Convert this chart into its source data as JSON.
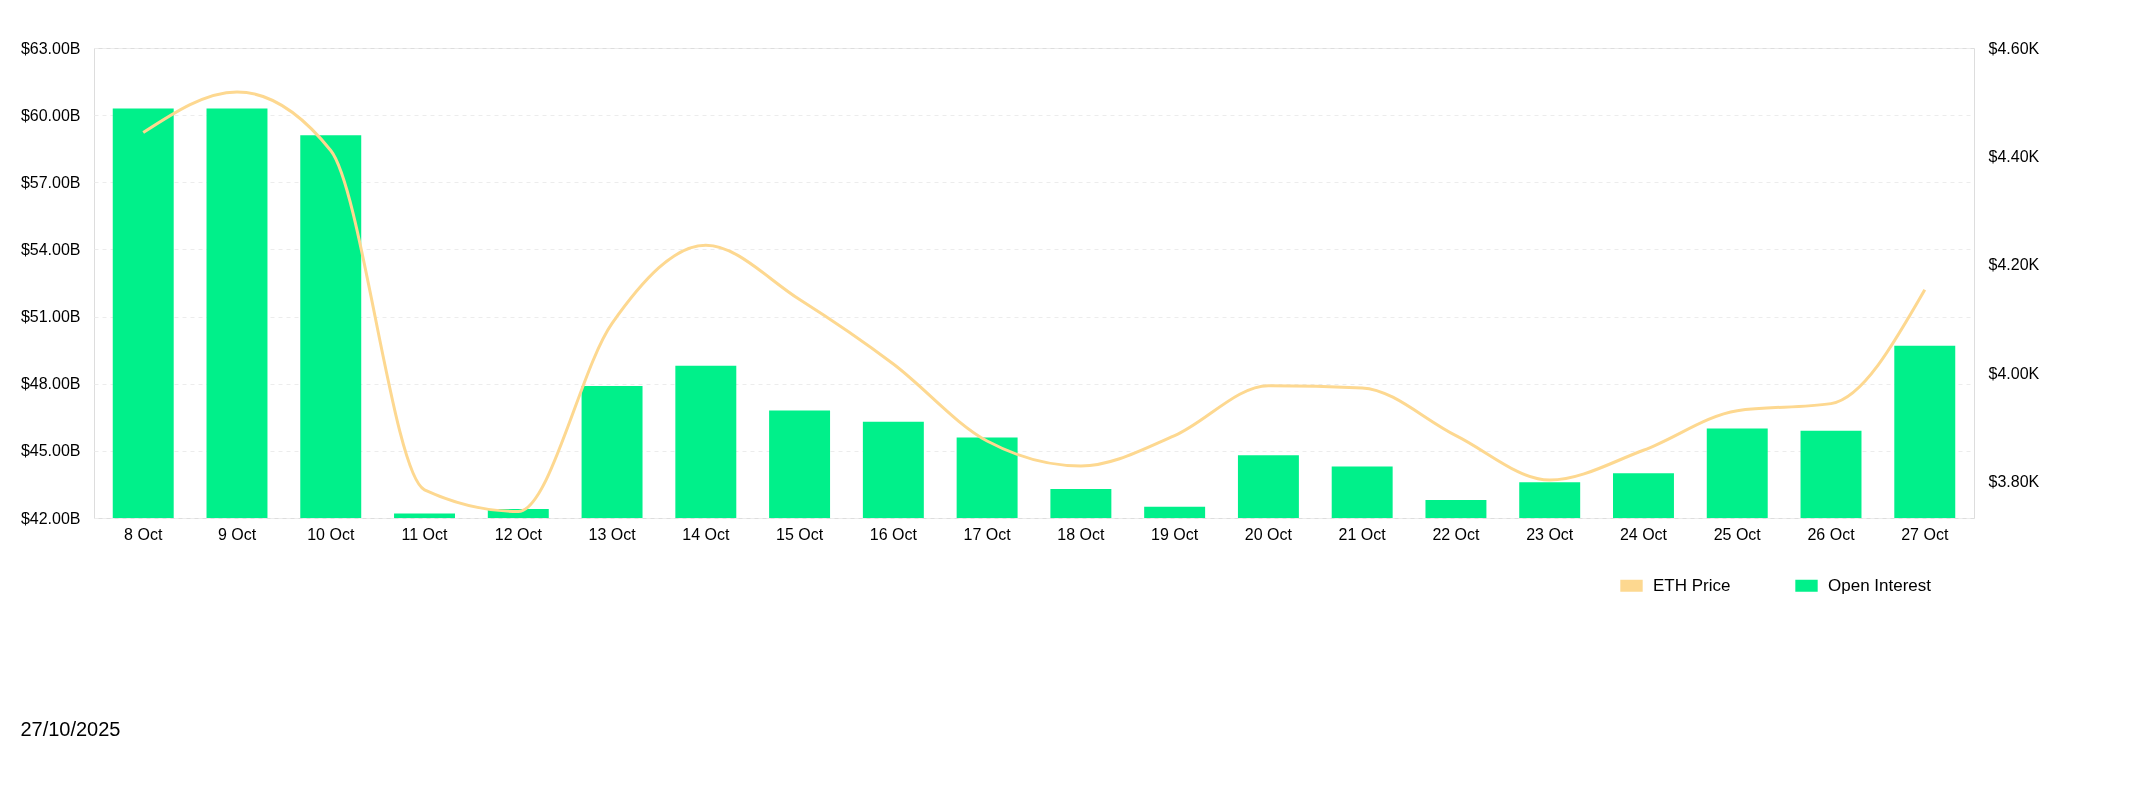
{
  "chart_data": {
    "type": "bar",
    "categories": [
      "8 Oct",
      "9 Oct",
      "10 Oct",
      "11 Oct",
      "12 Oct",
      "13 Oct",
      "14 Oct",
      "15 Oct",
      "16 Oct",
      "17 Oct",
      "18 Oct",
      "19 Oct",
      "20 Oct",
      "21 Oct",
      "22 Oct",
      "23 Oct",
      "24 Oct",
      "25 Oct",
      "26 Oct",
      "27 Oct"
    ],
    "series": [
      {
        "name": "ETH Price",
        "type": "line",
        "axis": "y2",
        "color": "#fdd890",
        "values": [
          4444,
          4519,
          4411,
          3785,
          3745,
          4092,
          4236,
          4136,
          4017,
          3875,
          3829,
          3885,
          3977,
          3973,
          3885,
          3803,
          3858,
          3931,
          3944,
          4154
        ]
      },
      {
        "name": "Open Interest",
        "color": "#00f08a",
        "values": [
          60.3,
          60.3,
          59.1,
          42.2,
          42.4,
          47.9,
          48.8,
          46.8,
          46.3,
          45.6,
          43.3,
          42.5,
          44.8,
          44.3,
          42.8,
          43.6,
          44.0,
          46.0,
          45.9,
          49.7
        ]
      }
    ],
    "ylim": [
      42,
      63
    ],
    "yticks": [
      {
        "value": 42,
        "label": "$42.00B"
      },
      {
        "value": 45,
        "label": "$45.00B"
      },
      {
        "value": 48,
        "label": "$48.00B"
      },
      {
        "value": 51,
        "label": "$51.00B"
      },
      {
        "value": 54,
        "label": "$54.00B"
      },
      {
        "value": 57,
        "label": "$57.00B"
      },
      {
        "value": 60,
        "label": "$60.00B"
      },
      {
        "value": 63,
        "label": "$63.00B"
      }
    ],
    "y2lim": [
      3733,
      4600
    ],
    "y2ticks": [
      {
        "value": 3800,
        "label": "$3.80K"
      },
      {
        "value": 4000,
        "label": "$4.00K"
      },
      {
        "value": 4200,
        "label": "$4.20K"
      },
      {
        "value": 4400,
        "label": "$4.40K"
      },
      {
        "value": 4600,
        "label": "$4.60K"
      }
    ],
    "grid": "y",
    "legend": "bottom right",
    "annotations": [
      "27/10/2025"
    ]
  }
}
